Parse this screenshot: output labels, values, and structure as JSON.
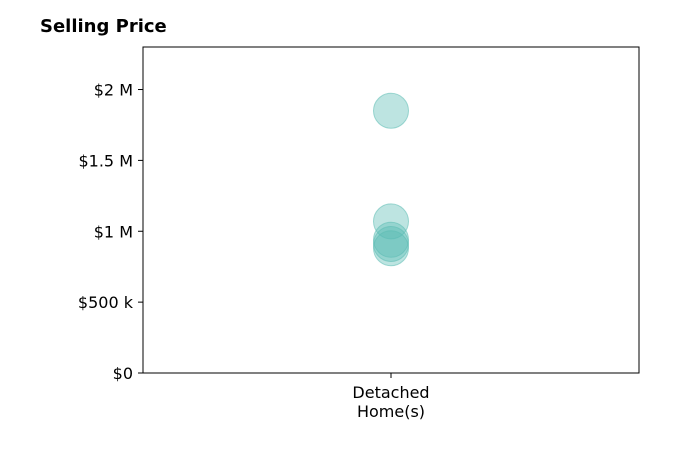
{
  "chart_data": {
    "type": "scatter",
    "title": "Selling Price",
    "categories": [
      "Detached Home(s)"
    ],
    "category_lines": [
      [
        "Detached",
        "Home(s)"
      ]
    ],
    "points": [
      {
        "category": "Detached Home(s)",
        "value": 1850000
      },
      {
        "category": "Detached Home(s)",
        "value": 1070000
      },
      {
        "category": "Detached Home(s)",
        "value": 940000
      },
      {
        "category": "Detached Home(s)",
        "value": 910000
      },
      {
        "category": "Detached Home(s)",
        "value": 880000
      }
    ],
    "y_ticks": [
      {
        "value": 0,
        "label": "$0"
      },
      {
        "value": 500000,
        "label": "$500 k"
      },
      {
        "value": 1000000,
        "label": "$1 M"
      },
      {
        "value": 1500000,
        "label": "$1.5 M"
      },
      {
        "value": 2000000,
        "label": "$2 M"
      }
    ],
    "ylim": [
      0,
      2300000
    ],
    "grid": false,
    "marker_color": "#5bbcb3"
  }
}
